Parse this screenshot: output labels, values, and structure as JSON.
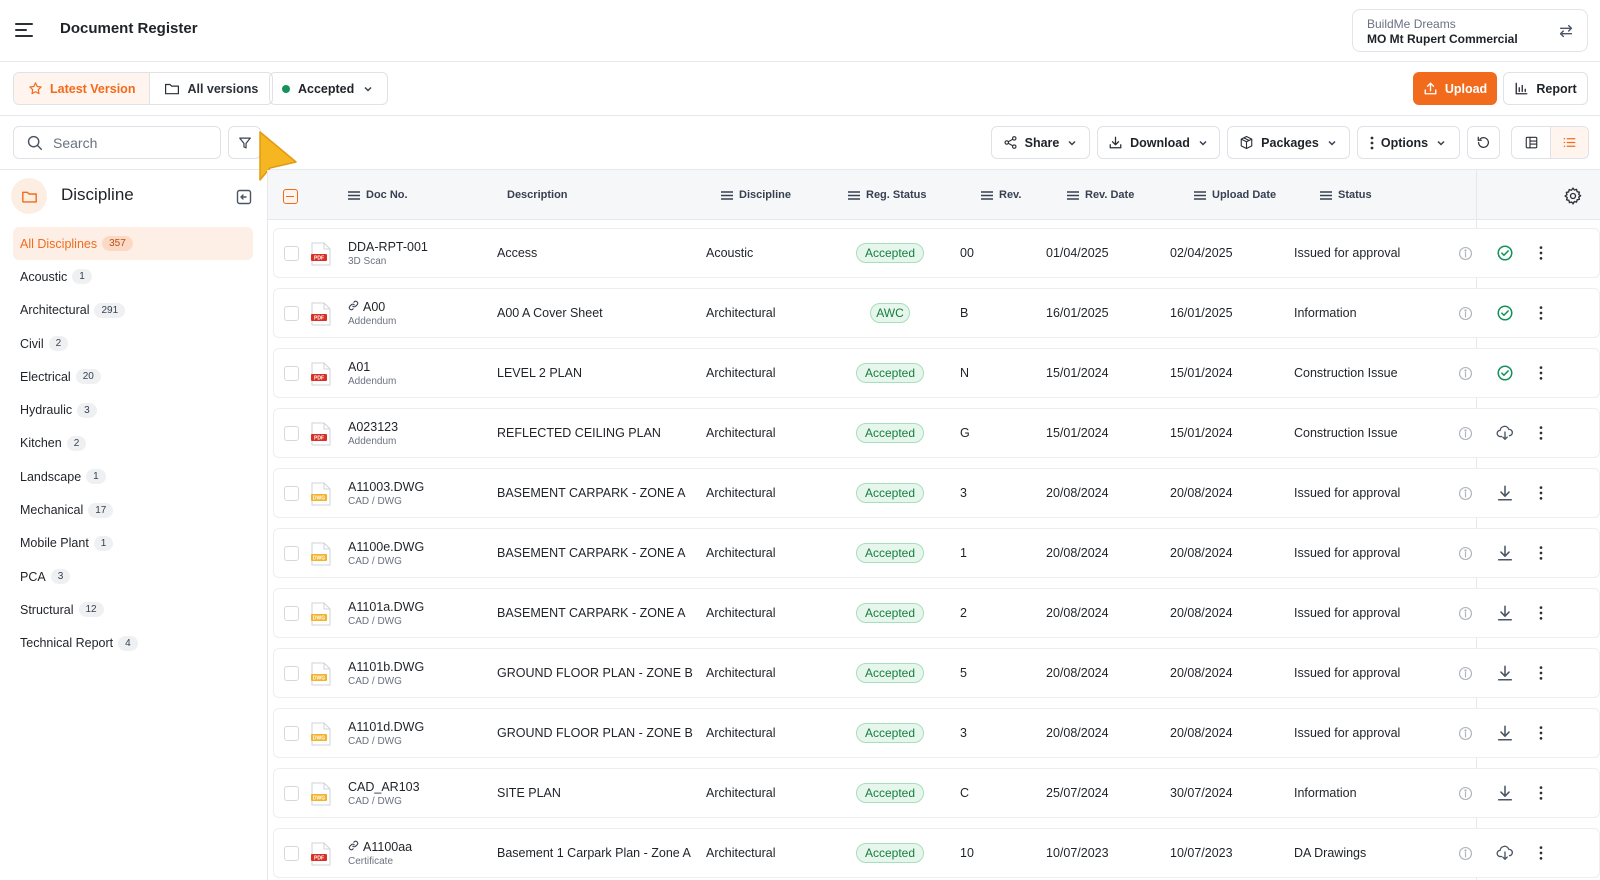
{
  "header": {
    "title": "Document Register",
    "org": "BuildMe Dreams",
    "project": "MO Mt Rupert Commercial"
  },
  "versionbar": {
    "latest_label": "Latest Version",
    "all_label": "All versions",
    "status_label": "Accepted",
    "upload_label": "Upload",
    "report_label": "Report"
  },
  "toolbar": {
    "search_placeholder": "Search",
    "share_label": "Share",
    "download_label": "Download",
    "packages_label": "Packages",
    "options_label": "Options"
  },
  "sidebar": {
    "title": "Discipline",
    "items": [
      {
        "label": "All Disciplines",
        "count": "357"
      },
      {
        "label": "Acoustic",
        "count": "1"
      },
      {
        "label": "Architectural",
        "count": "291"
      },
      {
        "label": "Civil",
        "count": "2"
      },
      {
        "label": "Electrical",
        "count": "20"
      },
      {
        "label": "Hydraulic",
        "count": "3"
      },
      {
        "label": "Kitchen",
        "count": "2"
      },
      {
        "label": "Landscape",
        "count": "1"
      },
      {
        "label": "Mechanical",
        "count": "17"
      },
      {
        "label": "Mobile Plant",
        "count": "1"
      },
      {
        "label": "PCA",
        "count": "3"
      },
      {
        "label": "Structural",
        "count": "12"
      },
      {
        "label": "Technical Report",
        "count": "4"
      }
    ]
  },
  "table": {
    "columns": {
      "doc_no": "Doc No.",
      "description": "Description",
      "discipline": "Discipline",
      "reg_status": "Reg. Status",
      "rev": "Rev.",
      "rev_date": "Rev. Date",
      "upload_date": "Upload Date",
      "status": "Status"
    },
    "rows": [
      {
        "file": "pdf",
        "linked": false,
        "doc_no": "DDA-RPT-001",
        "sub": "3D Scan",
        "description": "Access",
        "discipline": "Acoustic",
        "reg_status": "Accepted",
        "rev": "00",
        "rev_date": "01/04/2025",
        "upload_date": "02/04/2025",
        "status": "Issued for approval",
        "action": "check-circle-icon"
      },
      {
        "file": "pdf",
        "linked": true,
        "doc_no": "A00",
        "sub": "Addendum",
        "description": "A00 A Cover Sheet",
        "discipline": "Architectural",
        "reg_status": "AWC",
        "rev": "B",
        "rev_date": "16/01/2025",
        "upload_date": "16/01/2025",
        "status": "Information",
        "action": "check-circle-icon"
      },
      {
        "file": "pdf",
        "linked": false,
        "doc_no": "A01",
        "sub": "Addendum",
        "description": "LEVEL 2 PLAN",
        "discipline": "Architectural",
        "reg_status": "Accepted",
        "rev": "N",
        "rev_date": "15/01/2024",
        "upload_date": "15/01/2024",
        "status": "Construction Issue",
        "action": "check-circle-icon"
      },
      {
        "file": "pdf",
        "linked": false,
        "doc_no": "A023123",
        "sub": "Addendum",
        "description": "REFLECTED CEILING PLAN",
        "discipline": "Architectural",
        "reg_status": "Accepted",
        "rev": "G",
        "rev_date": "15/01/2024",
        "upload_date": "15/01/2024",
        "status": "Construction Issue",
        "action": "cloud-download-icon"
      },
      {
        "file": "dwg",
        "linked": false,
        "doc_no": "A11003.DWG",
        "sub": "CAD / DWG",
        "description": "BASEMENT CARPARK - ZONE A",
        "discipline": "Architectural",
        "reg_status": "Accepted",
        "rev": "3",
        "rev_date": "20/08/2024",
        "upload_date": "20/08/2024",
        "status": "Issued for approval",
        "action": "download-icon"
      },
      {
        "file": "dwg",
        "linked": false,
        "doc_no": "A1100e.DWG",
        "sub": "CAD / DWG",
        "description": "BASEMENT CARPARK - ZONE A",
        "discipline": "Architectural",
        "reg_status": "Accepted",
        "rev": "1",
        "rev_date": "20/08/2024",
        "upload_date": "20/08/2024",
        "status": "Issued for approval",
        "action": "download-icon"
      },
      {
        "file": "dwg",
        "linked": false,
        "doc_no": "A1101a.DWG",
        "sub": "CAD / DWG",
        "description": "BASEMENT CARPARK - ZONE A",
        "discipline": "Architectural",
        "reg_status": "Accepted",
        "rev": "2",
        "rev_date": "20/08/2024",
        "upload_date": "20/08/2024",
        "status": "Issued for approval",
        "action": "download-icon"
      },
      {
        "file": "dwg",
        "linked": false,
        "doc_no": "A1101b.DWG",
        "sub": "CAD / DWG",
        "description": "GROUND FLOOR PLAN - ZONE  B",
        "discipline": "Architectural",
        "reg_status": "Accepted",
        "rev": "5",
        "rev_date": "20/08/2024",
        "upload_date": "20/08/2024",
        "status": "Issued for approval",
        "action": "download-icon"
      },
      {
        "file": "dwg",
        "linked": false,
        "doc_no": "A1101d.DWG",
        "sub": "CAD / DWG",
        "description": "GROUND FLOOR PLAN - ZONE  B",
        "discipline": "Architectural",
        "reg_status": "Accepted",
        "rev": "3",
        "rev_date": "20/08/2024",
        "upload_date": "20/08/2024",
        "status": "Issued for approval",
        "action": "download-icon"
      },
      {
        "file": "dwg",
        "linked": false,
        "doc_no": "CAD_AR103",
        "sub": "CAD / DWG",
        "description": "SITE PLAN",
        "discipline": "Architectural",
        "reg_status": "Accepted",
        "rev": "C",
        "rev_date": "25/07/2024",
        "upload_date": "30/07/2024",
        "status": "Information",
        "action": "download-icon"
      },
      {
        "file": "pdf",
        "linked": true,
        "doc_no": "A1100aa",
        "sub": "Certificate",
        "description": "Basement 1 Carpark Plan - Zone A",
        "discipline": "Architectural",
        "reg_status": "Accepted",
        "rev": "10",
        "rev_date": "10/07/2023",
        "upload_date": "10/07/2023",
        "status": "DA Drawings",
        "action": "cloud-download-icon"
      }
    ]
  },
  "colors": {
    "accent": "#f26b1d",
    "accepted_text": "#15803d",
    "accepted_bg": "#e7f6ec",
    "pdf_red": "#d93025",
    "dwg_yellow": "#f2b32a"
  }
}
